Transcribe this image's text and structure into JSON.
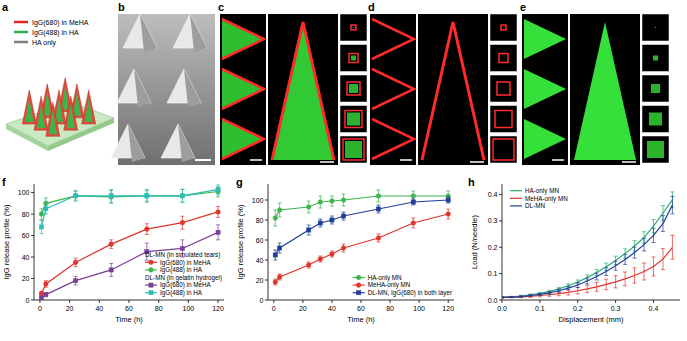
{
  "figure": {
    "panel_labels": [
      "a",
      "b",
      "c",
      "d",
      "e",
      "f",
      "g",
      "h"
    ],
    "schematic_legend": [
      {
        "label": "IgG(680) in MeHA",
        "color": "#e02828"
      },
      {
        "label": "IgG(488) in HA",
        "color": "#2db34a"
      },
      {
        "label": "HA only",
        "color": "#808080"
      }
    ]
  },
  "chart_data": [
    {
      "type": "line",
      "x_label": "Time (h)",
      "y_label": "IgG release profile (%)",
      "annotations": [
        "DL-MN (in simulated tears)",
        "DL-MN (in gelatin hydrogel)"
      ],
      "x": [
        1,
        4,
        24,
        48,
        72,
        96,
        120
      ],
      "xlim": [
        -4,
        124
      ],
      "xticks": [
        0,
        20,
        40,
        60,
        80,
        100,
        120
      ],
      "ylim": [
        0,
        108
      ],
      "yticks": [
        0,
        20,
        40,
        60,
        80,
        100
      ],
      "legend": "lower right",
      "series": [
        {
          "name": "IgG(680) in MeHA",
          "color": "#e0352b",
          "marker": "circle",
          "line_style": "solid",
          "values": [
            6,
            15,
            35,
            52,
            66,
            72,
            82
          ],
          "errors": [
            2,
            3,
            4,
            4,
            5,
            6,
            5
          ]
        },
        {
          "name": "IgG(488) in HA",
          "color": "#3db44e",
          "marker": "circle",
          "line_style": "solid",
          "values": [
            80,
            90,
            97,
            96,
            97,
            97,
            101
          ],
          "errors": [
            5,
            5,
            4,
            6,
            6,
            6,
            5
          ]
        },
        {
          "name": "IgG(680) in MeHA",
          "color": "#7a3f98",
          "marker": "square",
          "line_style": "solid",
          "values": [
            2,
            5,
            18,
            28,
            45,
            48,
            63
          ],
          "errors": [
            1,
            2,
            4,
            6,
            8,
            8,
            7
          ]
        },
        {
          "name": "IgG(488) in HA",
          "color": "#2dbdb8",
          "marker": "square",
          "line_style": "solid",
          "values": [
            68,
            85,
            97,
            97,
            97,
            97,
            103
          ],
          "errors": [
            6,
            5,
            5,
            6,
            5,
            6,
            5
          ]
        }
      ]
    },
    {
      "type": "line",
      "x_label": "Time (h)",
      "y_label": "IgG release profile (%)",
      "x": [
        1,
        4,
        24,
        32,
        40,
        48,
        72,
        96,
        120
      ],
      "xlim": [
        -4,
        124
      ],
      "xticks": [
        0,
        20,
        40,
        60,
        80,
        100,
        120
      ],
      "ylim": [
        0,
        116
      ],
      "yticks": [
        0,
        20,
        40,
        60,
        80,
        100
      ],
      "legend": "lower right",
      "series": [
        {
          "name": "HA-only MN",
          "color": "#3db44e",
          "marker": "circle",
          "line_style": "solid",
          "values": [
            82,
            90,
            93,
            98,
            99,
            100,
            104,
            104,
            104
          ],
          "errors": [
            8,
            7,
            6,
            6,
            5,
            6,
            6,
            5,
            5
          ]
        },
        {
          "name": "MeHA-only MN",
          "color": "#e0352b",
          "marker": "circle",
          "line_style": "solid",
          "values": [
            18,
            23,
            35,
            41,
            46,
            52,
            62,
            77,
            86
          ],
          "errors": [
            3,
            3,
            3,
            3,
            3,
            4,
            4,
            5,
            5
          ]
        },
        {
          "name": "DL-MN, IgG(680) in both layer",
          "color": "#1f3f9a",
          "marker": "square",
          "line_style": "solid",
          "values": [
            45,
            52,
            70,
            77,
            80,
            84,
            91,
            98,
            100
          ],
          "errors": [
            5,
            5,
            5,
            4,
            4,
            4,
            4,
            3,
            3
          ]
        }
      ]
    },
    {
      "type": "line",
      "x_label": "Displacement (mm)",
      "y_label": "Load (N/needle)",
      "x": [
        0,
        0.025,
        0.05,
        0.075,
        0.1,
        0.125,
        0.15,
        0.175,
        0.2,
        0.225,
        0.25,
        0.275,
        0.3,
        0.325,
        0.35,
        0.375,
        0.4,
        0.425,
        0.45
      ],
      "xlim": [
        0,
        0.47
      ],
      "xticks": [
        {
          "value": 0,
          "label": "0.0"
        },
        0.1,
        0.2,
        0.3,
        0.4
      ],
      "ylim": [
        0,
        0.44
      ],
      "yticks": [
        {
          "value": 0,
          "label": "0.0"
        },
        0.1,
        0.2,
        0.3,
        0.4
      ],
      "legend": "upper left",
      "series": [
        {
          "name": "HA-only MN",
          "color": "#2aa878",
          "marker": "none",
          "line_style": "solid",
          "values": [
            0.01,
            0.012,
            0.015,
            0.02,
            0.025,
            0.032,
            0.042,
            0.054,
            0.068,
            0.085,
            0.104,
            0.126,
            0.15,
            0.176,
            0.205,
            0.237,
            0.28,
            0.33,
            0.38
          ],
          "errors": [
            0.002,
            0.002,
            0.003,
            0.003,
            0.004,
            0.005,
            0.006,
            0.007,
            0.008,
            0.01,
            0.012,
            0.014,
            0.016,
            0.018,
            0.02,
            0.022,
            0.025,
            0.028,
            0.03
          ]
        },
        {
          "name": "MeHA-only MN",
          "color": "#e0352b",
          "marker": "none",
          "line_style": "solid",
          "values": [
            0.01,
            0.011,
            0.012,
            0.014,
            0.017,
            0.02,
            0.024,
            0.029,
            0.035,
            0.042,
            0.05,
            0.059,
            0.069,
            0.08,
            0.093,
            0.108,
            0.127,
            0.155,
            0.2
          ],
          "errors": [
            0.002,
            0.002,
            0.003,
            0.004,
            0.005,
            0.006,
            0.008,
            0.01,
            0.012,
            0.014,
            0.017,
            0.02,
            0.023,
            0.026,
            0.029,
            0.032,
            0.036,
            0.04,
            0.045
          ]
        },
        {
          "name": "DL-MN",
          "color": "#1f3f9a",
          "marker": "none",
          "line_style": "solid",
          "values": [
            0.01,
            0.011,
            0.013,
            0.017,
            0.021,
            0.027,
            0.035,
            0.045,
            0.057,
            0.072,
            0.089,
            0.108,
            0.13,
            0.154,
            0.18,
            0.21,
            0.245,
            0.29,
            0.36
          ],
          "errors": [
            0.002,
            0.002,
            0.003,
            0.003,
            0.004,
            0.005,
            0.006,
            0.007,
            0.009,
            0.011,
            0.013,
            0.015,
            0.017,
            0.019,
            0.021,
            0.024,
            0.027,
            0.03,
            0.033
          ]
        }
      ]
    }
  ]
}
